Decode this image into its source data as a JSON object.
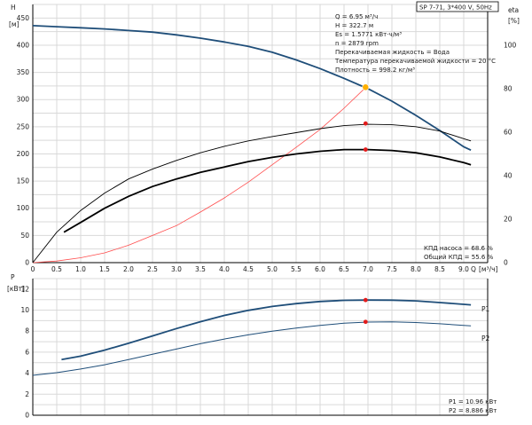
{
  "header": {
    "pump_label": "SP 7-71, 3*400 V, 50Hz"
  },
  "duty_point": {
    "lines": [
      "Q = 6.95 м³/ч",
      "H = 322.7 м",
      "Es = 1.5771 кВт·ч/м³",
      "n = 2879 rpm",
      "Перекачиваемая жидкость = Вода",
      "Температура перекачиваемой жидкости = 20 °C",
      "Плотность = 998.2 кг/м³"
    ]
  },
  "efficiency_info": {
    "pump_eff": "КПД насоса = 68.6 %",
    "total_eff": "Общий КПД = 55.6 %"
  },
  "power_info": {
    "p1": "P1 = 10.96 кВт",
    "p2": "P2 = 8.886 кВт"
  },
  "colors": {
    "blue": "#1f4e79",
    "black": "#000000",
    "red_curve": "#ff4d4d",
    "marker_red": "#e31b1b",
    "marker_orange": "#ffb000",
    "grid": "#d9d9d9"
  },
  "chart_data": [
    {
      "type": "line",
      "ylabel_left": "H",
      "ylabel_left_unit": "[м]",
      "ylabel_right": "eta",
      "ylabel_right_unit": "[%]",
      "xlabel": "Q",
      "xlabel_unit": "[м³/ч]",
      "xlim": [
        0,
        9.5
      ],
      "ylim_left": [
        0,
        475
      ],
      "ylim_right": [
        0,
        118.75
      ],
      "x_ticks": [
        "0",
        "0.5",
        "1.0",
        "1.5",
        "2.0",
        "2.5",
        "3.0",
        "3.5",
        "4.0",
        "4.5",
        "5.0",
        "5.5",
        "6.0",
        "6.5",
        "7.0",
        "7.5",
        "8.0",
        "8.5",
        "9.0"
      ],
      "x_tick_values": [
        0,
        0.5,
        1.0,
        1.5,
        2.0,
        2.5,
        3.0,
        3.5,
        4.0,
        4.5,
        5.0,
        5.5,
        6.0,
        6.5,
        7.0,
        7.5,
        8.0,
        8.5,
        9.0
      ],
      "y_left_ticks": [
        0,
        50,
        100,
        150,
        200,
        250,
        300,
        350,
        400,
        450
      ],
      "y_right_ticks": [
        0,
        20,
        40,
        60,
        80,
        100
      ],
      "grid": true,
      "series": [
        {
          "axis": "left",
          "style": "head",
          "x": [
            0,
            0.5,
            1.0,
            1.5,
            2.0,
            2.5,
            3.0,
            3.5,
            4.0,
            4.5,
            5.0,
            5.5,
            6.0,
            6.5,
            7.0,
            7.5,
            8.0,
            8.5,
            9.0,
            9.15
          ],
          "y": [
            436,
            434,
            432,
            430,
            427,
            424,
            419,
            413,
            406,
            398,
            387,
            373,
            357,
            339,
            320,
            297,
            271,
            243,
            213,
            207
          ]
        },
        {
          "axis": "left",
          "style": "system",
          "x": [
            0,
            0.5,
            1.0,
            1.5,
            2.0,
            2.5,
            3.0,
            3.5,
            4.0,
            4.5,
            5.0,
            5.5,
            6.0,
            6.5,
            6.95
          ],
          "y": [
            0,
            3,
            9,
            18,
            32,
            50,
            68,
            93,
            119,
            148,
            180,
            212,
            245,
            284,
            322
          ]
        },
        {
          "axis": "right",
          "style": "eta_thin",
          "x": [
            0,
            0.5,
            1.0,
            1.5,
            2.0,
            2.5,
            3.0,
            3.5,
            4.0,
            4.5,
            5.0,
            5.5,
            6.0,
            6.5,
            7.0,
            7.5,
            8.0,
            8.5,
            9.0,
            9.15
          ],
          "y": [
            0,
            14,
            24,
            32,
            38.5,
            43,
            47,
            50.5,
            53.5,
            56,
            58,
            59.8,
            61.6,
            63,
            63.6,
            63.4,
            62.5,
            60.5,
            57,
            56
          ]
        },
        {
          "axis": "right",
          "style": "eta_thick",
          "x": [
            0.65,
            1.0,
            1.5,
            2.0,
            2.5,
            3.0,
            3.5,
            4.0,
            4.5,
            5.0,
            5.5,
            6.0,
            6.5,
            7.0,
            7.5,
            8.0,
            8.5,
            9.0,
            9.15
          ],
          "y": [
            14,
            18.5,
            25,
            30.5,
            35,
            38.5,
            41.5,
            44,
            46.5,
            48.4,
            50,
            51.2,
            52,
            52,
            51.6,
            50.5,
            48.6,
            46,
            45
          ]
        }
      ],
      "markers": [
        {
          "axis": "left",
          "x": 6.95,
          "y": 322.7,
          "style": "orange"
        },
        {
          "axis": "right",
          "x": 6.95,
          "y": 64,
          "style": "red"
        },
        {
          "axis": "right",
          "x": 6.95,
          "y": 52,
          "style": "red"
        }
      ]
    },
    {
      "type": "line",
      "ylabel_left": "P",
      "ylabel_left_unit": "[кВт]",
      "xlim": [
        0,
        9.5
      ],
      "ylim": [
        0,
        13
      ],
      "y_ticks": [
        0,
        2,
        4,
        6,
        8,
        10,
        12
      ],
      "grid": true,
      "series": [
        {
          "name": "P1",
          "style": "p1",
          "x": [
            0.6,
            1.0,
            1.5,
            2.0,
            2.5,
            3.0,
            3.5,
            4.0,
            4.5,
            5.0,
            5.5,
            6.0,
            6.5,
            7.0,
            7.5,
            8.0,
            8.5,
            9.0,
            9.15
          ],
          "y": [
            5.3,
            5.62,
            6.2,
            6.85,
            7.55,
            8.25,
            8.9,
            9.5,
            9.98,
            10.35,
            10.62,
            10.82,
            10.93,
            10.96,
            10.95,
            10.88,
            10.72,
            10.55,
            10.5
          ]
        },
        {
          "name": "P2",
          "style": "p2",
          "x": [
            0,
            0.5,
            1.0,
            1.5,
            2.0,
            2.5,
            3.0,
            3.5,
            4.0,
            4.5,
            5.0,
            5.5,
            6.0,
            6.5,
            7.0,
            7.5,
            8.0,
            8.5,
            9.0,
            9.15
          ],
          "y": [
            3.8,
            4.05,
            4.4,
            4.8,
            5.3,
            5.8,
            6.3,
            6.8,
            7.25,
            7.65,
            8.0,
            8.3,
            8.55,
            8.75,
            8.86,
            8.88,
            8.82,
            8.7,
            8.55,
            8.5
          ]
        }
      ],
      "markers": [
        {
          "x": 6.95,
          "y": 10.96,
          "style": "red"
        },
        {
          "x": 6.95,
          "y": 8.886,
          "style": "red"
        }
      ]
    }
  ]
}
